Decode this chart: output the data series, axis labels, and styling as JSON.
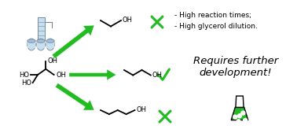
{
  "bg_color": "#ffffff",
  "text_bullet1": "- High reaction times;",
  "text_bullet2": "- High glycerol dilution.",
  "text_requires": "Requires further\ndevelopment!",
  "green": "#22bb22",
  "green_light": "#44dd44",
  "black": "#000000",
  "gray": "#888888",
  "blue_light": "#c8dff0",
  "blue_mid": "#a0c0e0",
  "fig_width": 3.78,
  "fig_height": 1.69,
  "dpi": 100
}
